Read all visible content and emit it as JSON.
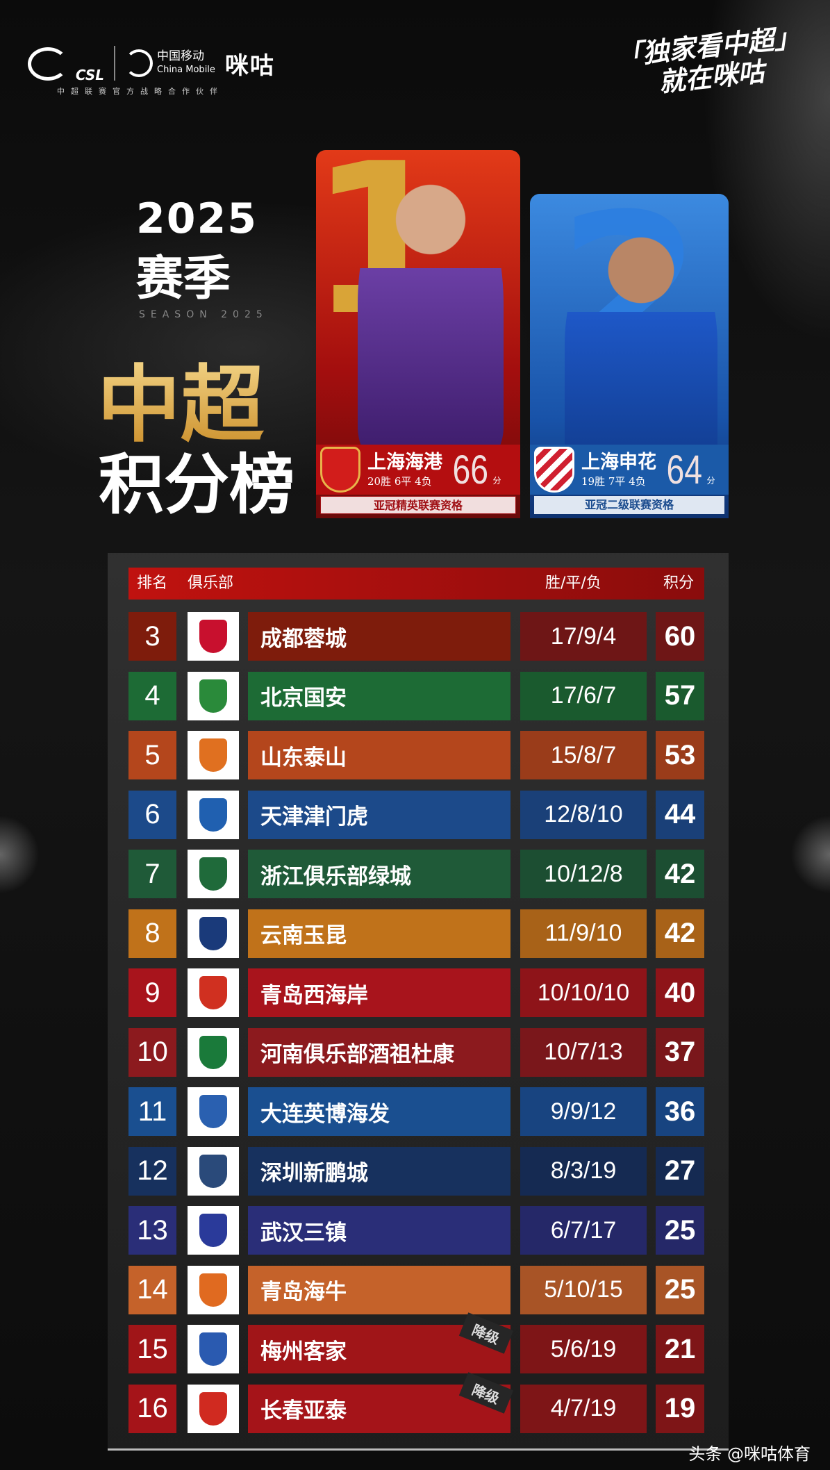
{
  "header": {
    "csl_logo": "CSL",
    "partner_logo": "中国移动",
    "partner_logo_en": "China Mobile",
    "brand": "咪咕",
    "partner_tagline": "中超联赛官方战略合作伙伴",
    "slogan_line1": "「独家看中超」",
    "slogan_line2": "就在咪咕"
  },
  "title": {
    "year": "2025",
    "season": "赛季",
    "subtitle": "SEASON 2025",
    "league": "中超",
    "board": "积分榜"
  },
  "top_cards": [
    {
      "rank": "1",
      "team": "上海海港",
      "record": "20胜 6平 4负",
      "points": "66",
      "points_unit": "分",
      "qualification": "亚冠精英联赛资格",
      "color": "#b40e10"
    },
    {
      "rank": "2",
      "team": "上海申花",
      "record": "19胜 7平 4负",
      "points": "64",
      "points_unit": "分",
      "qualification": "亚冠二级联赛资格",
      "color": "#1b5aa8"
    }
  ],
  "table": {
    "headers": {
      "rank": "排名",
      "club": "俱乐部",
      "wdl": "胜/平/负",
      "points": "积分"
    },
    "relegation_label": "降级",
    "rows": [
      {
        "rank": "3",
        "team": "成都蓉城",
        "wdl": "17/9/4",
        "points": "60",
        "color": "#7e1c0c",
        "alt": "#6e1616",
        "logo": "#c8102e"
      },
      {
        "rank": "4",
        "team": "北京国安",
        "wdl": "17/6/7",
        "points": "57",
        "color": "#1d6b35",
        "alt": "#1a5a2e",
        "logo": "#2a8a3a"
      },
      {
        "rank": "5",
        "team": "山东泰山",
        "wdl": "15/8/7",
        "points": "53",
        "color": "#b4461c",
        "alt": "#9a3c1a",
        "logo": "#e07020"
      },
      {
        "rank": "6",
        "team": "天津津门虎",
        "wdl": "12/8/10",
        "points": "44",
        "color": "#1c4a8a",
        "alt": "#1a4078",
        "logo": "#2060b0"
      },
      {
        "rank": "7",
        "team": "浙江俱乐部绿城",
        "wdl": "10/12/8",
        "points": "42",
        "color": "#1f5a38",
        "alt": "#1c4e32",
        "logo": "#1f6a3a"
      },
      {
        "rank": "8",
        "team": "云南玉昆",
        "wdl": "11/9/10",
        "points": "42",
        "color": "#c0721a",
        "alt": "#a86218",
        "logo": "#1a3a7a"
      },
      {
        "rank": "9",
        "team": "青岛西海岸",
        "wdl": "10/10/10",
        "points": "40",
        "color": "#a8141c",
        "alt": "#8e1419",
        "logo": "#d03020"
      },
      {
        "rank": "10",
        "team": "河南俱乐部酒祖杜康",
        "wdl": "10/7/13",
        "points": "37",
        "color": "#8c1a1e",
        "alt": "#7a171b",
        "logo": "#1a7a3a"
      },
      {
        "rank": "11",
        "team": "大连英博海发",
        "wdl": "9/9/12",
        "points": "36",
        "color": "#1a4f90",
        "alt": "#184480",
        "logo": "#2a60b0"
      },
      {
        "rank": "12",
        "team": "深圳新鹏城",
        "wdl": "8/3/19",
        "points": "27",
        "color": "#17315e",
        "alt": "#152a52",
        "logo": "#2a4a7a"
      },
      {
        "rank": "13",
        "team": "武汉三镇",
        "wdl": "6/7/17",
        "points": "25",
        "color": "#2a2e78",
        "alt": "#252868",
        "logo": "#2a3a9a"
      },
      {
        "rank": "14",
        "team": "青岛海牛",
        "wdl": "5/10/15",
        "points": "25",
        "color": "#c5622a",
        "alt": "#a85426",
        "logo": "#e06a20"
      },
      {
        "rank": "15",
        "team": "梅州客家",
        "wdl": "5/6/19",
        "points": "21",
        "color": "#a01518",
        "alt": "#7e1517",
        "logo": "#2a5ab0",
        "relegated": true
      },
      {
        "rank": "16",
        "team": "长春亚泰",
        "wdl": "4/7/19",
        "points": "19",
        "color": "#a51419",
        "alt": "#7e1517",
        "logo": "#d02a20",
        "relegated": true
      }
    ]
  },
  "watermark": "头条 @咪咕体育"
}
